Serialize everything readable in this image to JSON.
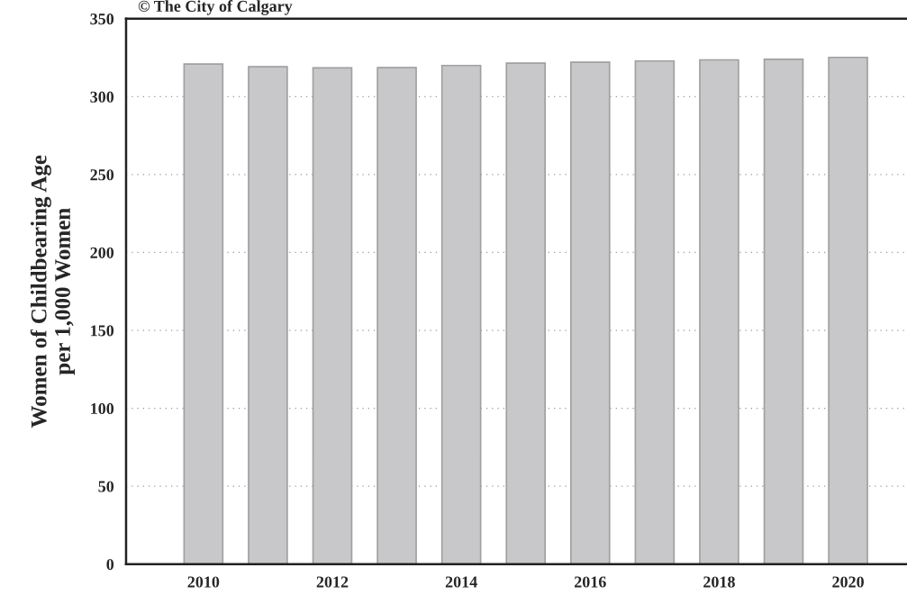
{
  "chart_data": {
    "type": "bar",
    "annotations": [
      "© The City of Calgary"
    ],
    "ylabel": "Women of Childbearing Age\nper 1,000 Women",
    "x": [
      2010,
      2011,
      2012,
      2013,
      2014,
      2015,
      2016,
      2017,
      2018,
      2019,
      2020
    ],
    "values": [
      320.9,
      319.2,
      318.5,
      318.6,
      320,
      321.5,
      322.1,
      322.9,
      323.6,
      324,
      325.2
    ],
    "color": "#c8c8ca",
    "xlim": [
      2008.8,
      2020.9
    ],
    "xticks": [
      2010,
      2012,
      2014,
      2016,
      2018,
      2020
    ],
    "ylim": [
      0,
      350
    ],
    "yticks": [
      0,
      50,
      100,
      150,
      200,
      250,
      300,
      350
    ],
    "grid": "y",
    "legend": false
  }
}
